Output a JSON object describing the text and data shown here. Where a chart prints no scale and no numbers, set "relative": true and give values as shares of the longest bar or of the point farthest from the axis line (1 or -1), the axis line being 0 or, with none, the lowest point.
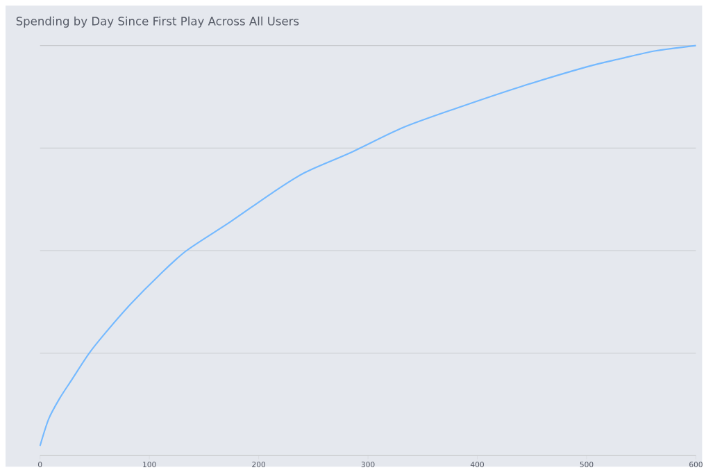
{
  "chart_data": {
    "type": "line",
    "title": "Spending by Day Since First Play Across All Users",
    "relative": true,
    "grid": "y",
    "marker": "none",
    "line_style": "solid",
    "xlim": [
      0,
      600
    ],
    "xticks": [
      0,
      100,
      200,
      300,
      400,
      500,
      600
    ],
    "series": [
      {
        "color": "#74b9ff",
        "x": [
          0,
          8,
          18,
          29,
          45,
          60,
          83,
          109,
          134,
          174,
          212,
          242,
          285,
          332,
          384,
          440,
          500,
          531,
          563,
          600
        ],
        "values": [
          0.024,
          0.09,
          0.14,
          0.185,
          0.25,
          0.3,
          0.37,
          0.44,
          0.5,
          0.57,
          0.64,
          0.69,
          0.74,
          0.8,
          0.85,
          0.9,
          0.948,
          0.968,
          0.987,
          1
        ]
      }
    ]
  }
}
